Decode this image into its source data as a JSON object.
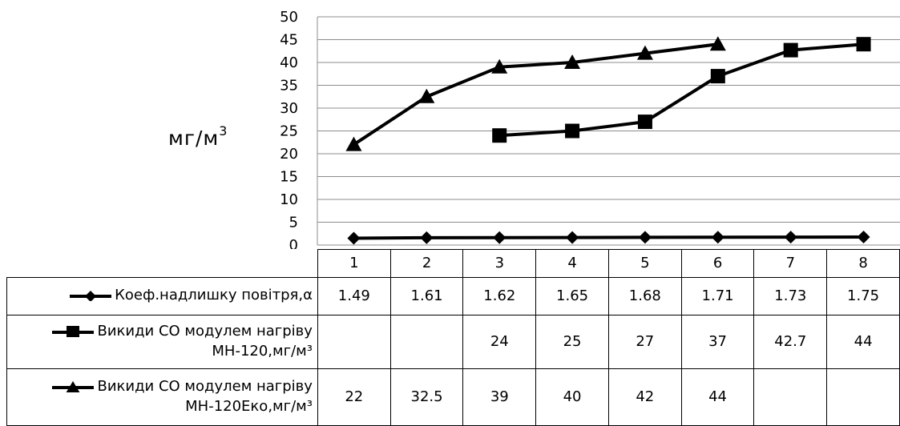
{
  "chart_data": {
    "type": "line",
    "title": "",
    "ylabel": "мг/м",
    "ylabel_sup": "3",
    "ylim": [
      0,
      50
    ],
    "yticks": [
      "0",
      "5",
      "10",
      "15",
      "20",
      "25",
      "30",
      "35",
      "40",
      "45",
      "50"
    ],
    "categories": [
      "1",
      "2",
      "3",
      "4",
      "5",
      "6",
      "7",
      "8"
    ],
    "grid": true,
    "legend": "data-table",
    "series": [
      {
        "name": "Коеф.надлишку повітря,α",
        "name_line2": "",
        "marker": "diamond",
        "values": [
          1.49,
          1.61,
          1.62,
          1.65,
          1.68,
          1.71,
          1.73,
          1.75
        ],
        "labels": [
          "1.49",
          "1.61",
          "1.62",
          "1.65",
          "1.68",
          "1.71",
          "1.73",
          "1.75"
        ]
      },
      {
        "name": "Викиди СО модулем нагріву",
        "name_line2": "МН-120,мг/м³",
        "marker": "square",
        "values": [
          null,
          null,
          24,
          25,
          27,
          37,
          42.7,
          44
        ],
        "labels": [
          "",
          "",
          "24",
          "25",
          "27",
          "37",
          "42.7",
          "44"
        ]
      },
      {
        "name": "Викиди СО модулем нагріву",
        "name_line2": "МН-120Еко,мг/м³",
        "marker": "triangle",
        "values": [
          22,
          32.5,
          39,
          40,
          42,
          44,
          null,
          null
        ],
        "labels": [
          "22",
          "32.5",
          "39",
          "40",
          "42",
          "44",
          "",
          ""
        ]
      }
    ]
  }
}
